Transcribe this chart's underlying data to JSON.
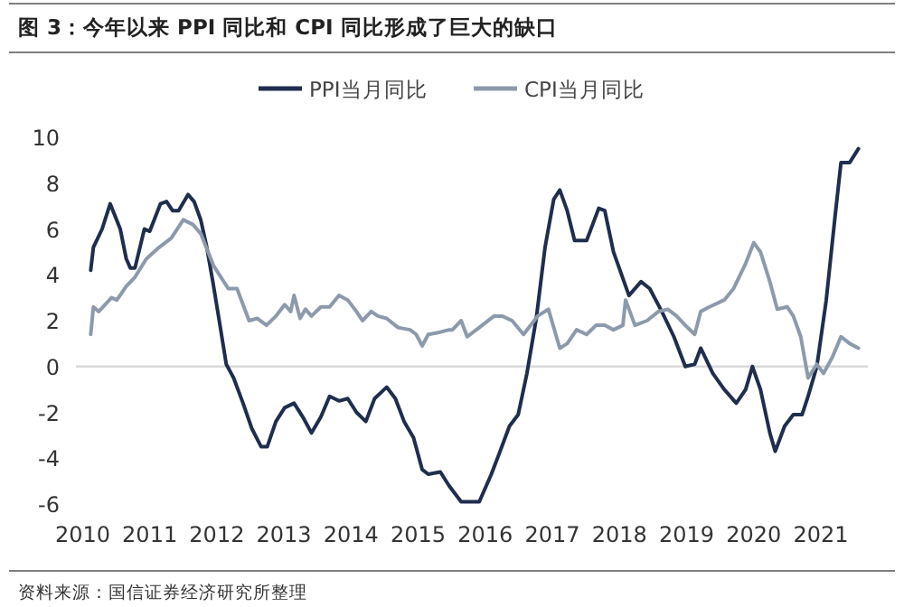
{
  "chart_data": {
    "type": "line",
    "title": "图 3：今年以来 PPI 同比和 CPI 同比形成了巨大的缺口",
    "annotations": [
      "资料来源：国信证券经济研究所整理"
    ],
    "legend": "top",
    "grid": false,
    "marker": "none",
    "line_style": "solid",
    "xlim": [
      2009.9,
      2021.7
    ],
    "xticks": [
      2010,
      2011,
      2012,
      2013,
      2014,
      2015,
      2016,
      2017,
      2018,
      2019,
      2020,
      2021
    ],
    "ylim": [
      -6,
      10
    ],
    "yticks": [
      -6,
      -4,
      -2,
      0,
      2,
      4,
      6,
      8,
      10
    ],
    "ref_lines": [
      {
        "axis": "y",
        "value": 0,
        "color": "#d9d9d9"
      }
    ],
    "series": [
      {
        "name": "PPI当月同比",
        "color": "#1f2d4e",
        "x": [
          2010.12,
          2010.16,
          2010.29,
          2010.41,
          2010.56,
          2010.65,
          2010.71,
          2010.78,
          2010.92,
          2011.0,
          2011.16,
          2011.25,
          2011.34,
          2011.43,
          2011.57,
          2011.66,
          2011.76,
          2011.85,
          2011.94,
          2012.03,
          2012.14,
          2012.25,
          2012.39,
          2012.52,
          2012.66,
          2012.75,
          2012.88,
          2013.01,
          2013.15,
          2013.28,
          2013.41,
          2013.55,
          2013.68,
          2013.82,
          2013.95,
          2014.08,
          2014.22,
          2014.35,
          2014.53,
          2014.66,
          2014.79,
          2014.93,
          2015.06,
          2015.15,
          2015.33,
          2015.46,
          2015.64,
          2015.91,
          2016.09,
          2016.22,
          2016.36,
          2016.49,
          2016.62,
          2016.76,
          2016.89,
          2017.02,
          2017.11,
          2017.22,
          2017.33,
          2017.51,
          2017.69,
          2017.78,
          2017.91,
          2018.14,
          2018.32,
          2018.45,
          2018.63,
          2018.81,
          2018.98,
          2019.12,
          2019.21,
          2019.39,
          2019.56,
          2019.74,
          2019.88,
          2019.98,
          2020.1,
          2020.24,
          2020.32,
          2020.46,
          2020.59,
          2020.72,
          2020.81,
          2020.94,
          2021.08,
          2021.21,
          2021.3,
          2021.43,
          2021.56
        ],
        "values": [
          4.2,
          5.2,
          6.0,
          7.1,
          6.0,
          4.7,
          4.3,
          4.3,
          6.0,
          5.9,
          7.1,
          7.2,
          6.8,
          6.8,
          7.5,
          7.2,
          6.4,
          5.2,
          3.7,
          2.1,
          0.1,
          -0.5,
          -1.6,
          -2.7,
          -3.5,
          -3.5,
          -2.4,
          -1.8,
          -1.6,
          -2.2,
          -2.9,
          -2.2,
          -1.3,
          -1.5,
          -1.4,
          -2.0,
          -2.4,
          -1.4,
          -0.9,
          -1.4,
          -2.4,
          -3.1,
          -4.5,
          -4.7,
          -4.6,
          -5.2,
          -5.9,
          -5.9,
          -4.7,
          -3.7,
          -2.6,
          -2.1,
          -0.3,
          2.1,
          5.2,
          7.3,
          7.7,
          6.8,
          5.5,
          5.5,
          6.9,
          6.8,
          5.0,
          3.1,
          3.7,
          3.4,
          2.4,
          1.3,
          0.0,
          0.1,
          0.8,
          -0.3,
          -1.0,
          -1.6,
          -1.0,
          0.0,
          -1.0,
          -2.9,
          -3.7,
          -2.6,
          -2.1,
          -2.1,
          -1.3,
          0.0,
          2.9,
          6.5,
          8.9,
          8.9,
          9.5
        ]
      },
      {
        "name": "CPI当月同比",
        "color": "#8c9aab",
        "x": [
          2010.12,
          2010.16,
          2010.24,
          2010.43,
          2010.51,
          2010.65,
          2010.78,
          2010.95,
          2011.14,
          2011.32,
          2011.5,
          2011.64,
          2011.76,
          2011.95,
          2012.17,
          2012.3,
          2012.48,
          2012.6,
          2012.74,
          2012.88,
          2013.01,
          2013.1,
          2013.15,
          2013.24,
          2013.32,
          2013.41,
          2013.55,
          2013.68,
          2013.82,
          2013.95,
          2014.08,
          2014.17,
          2014.3,
          2014.4,
          2014.53,
          2014.7,
          2014.88,
          2014.97,
          2015.06,
          2015.15,
          2015.33,
          2015.46,
          2015.51,
          2015.64,
          2015.73,
          2015.91,
          2016.13,
          2016.25,
          2016.4,
          2016.57,
          2016.78,
          2016.94,
          2017.11,
          2017.22,
          2017.36,
          2017.51,
          2017.65,
          2017.78,
          2017.91,
          2018.05,
          2018.09,
          2018.23,
          2018.41,
          2018.58,
          2018.72,
          2018.85,
          2018.98,
          2019.12,
          2019.21,
          2019.34,
          2019.56,
          2019.7,
          2019.88,
          2020.0,
          2020.1,
          2020.24,
          2020.35,
          2020.5,
          2020.59,
          2020.7,
          2020.81,
          2020.94,
          2021.04,
          2021.17,
          2021.3,
          2021.43,
          2021.56
        ],
        "values": [
          1.4,
          2.6,
          2.4,
          3.0,
          2.9,
          3.5,
          3.9,
          4.7,
          5.2,
          5.6,
          6.4,
          6.2,
          5.8,
          4.4,
          3.4,
          3.4,
          2.0,
          2.1,
          1.8,
          2.2,
          2.7,
          2.4,
          3.1,
          2.1,
          2.5,
          2.2,
          2.6,
          2.6,
          3.1,
          2.9,
          2.4,
          2.0,
          2.4,
          2.2,
          2.1,
          1.7,
          1.6,
          1.4,
          0.9,
          1.4,
          1.5,
          1.6,
          1.6,
          2.0,
          1.3,
          1.7,
          2.2,
          2.2,
          2.0,
          1.4,
          2.2,
          2.5,
          0.8,
          1.0,
          1.6,
          1.4,
          1.8,
          1.8,
          1.6,
          1.8,
          2.9,
          1.8,
          2.0,
          2.4,
          2.5,
          2.2,
          1.8,
          1.4,
          2.4,
          2.6,
          2.9,
          3.4,
          4.5,
          5.4,
          5.0,
          3.7,
          2.5,
          2.6,
          2.2,
          1.3,
          -0.5,
          0.1,
          -0.3,
          0.4,
          1.3,
          1.0,
          0.8
        ]
      }
    ]
  }
}
